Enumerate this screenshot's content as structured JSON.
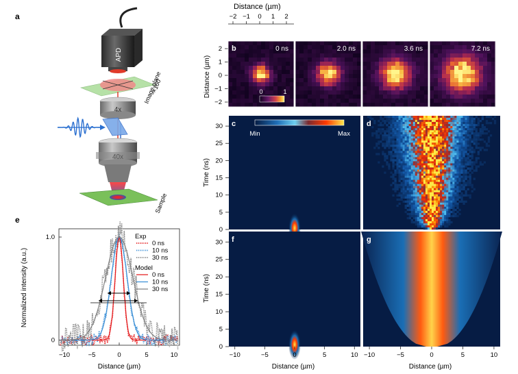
{
  "panels": {
    "a": "a",
    "b": "b",
    "c": "c",
    "d": "d",
    "e": "e",
    "f": "f",
    "g": "g"
  },
  "colors": {
    "hot_dark": "#140428",
    "hot_mid": "#c02a3a",
    "hot_bright": "#ffe56a",
    "jet_dark": "#061c44",
    "jet_mid": "#3cb6ea",
    "jet_hot": "#ff3a00",
    "exp0": "#e41a1c",
    "exp10": "#3a8fd6",
    "exp30": "#808080"
  },
  "schematic": {
    "detector": "APD",
    "image_plane": "Image plane",
    "magnification": "×160",
    "objective_small": "4x",
    "objective_large": "40x",
    "sample": "Sample"
  },
  "panel_b": {
    "top_axis_label": "Distance (µm)",
    "top_ticks": [
      "−2",
      "−1",
      "0",
      "1",
      "2"
    ],
    "y_label": "Distance (µm)",
    "y_ticks": [
      "2",
      "1",
      "0",
      "−1",
      "−2"
    ],
    "times": [
      "0 ns",
      "2.0 ns",
      "3.6 ns",
      "7.2 ns"
    ],
    "colorbar_min": "0",
    "colorbar_max": "1"
  },
  "heatmaps": {
    "colorbar_min": "Min",
    "colorbar_max": "Max",
    "time_label": "Time (ns)",
    "time_ticks": [
      "30",
      "25",
      "20",
      "15",
      "10",
      "5",
      "0"
    ],
    "x_label": "Distance (µm)",
    "x_ticks": [
      "−10",
      "−5",
      "0",
      "5",
      "10"
    ]
  },
  "chart_data": {
    "type": "line",
    "title": "",
    "xlabel": "Distance (µm)",
    "ylabel": "Normalized intensity (a.u.)",
    "xlim": [
      -11,
      11
    ],
    "ylim": [
      -0.05,
      1.08
    ],
    "x_ticks": [
      "−10",
      "−5",
      "0",
      "5",
      "10"
    ],
    "y_ticks": [
      "0",
      "1.0"
    ],
    "legend_exp_title": "Exp",
    "legend_model_title": "Model",
    "series": [
      {
        "name": "0 ns",
        "group": "Exp",
        "style": "dotted",
        "sigma_um": 0.75,
        "amplitude": 1.0
      },
      {
        "name": "10 ns",
        "group": "Exp",
        "style": "dotted",
        "sigma_um": 1.45,
        "amplitude": 1.0
      },
      {
        "name": "30 ns",
        "group": "Exp",
        "style": "dotted",
        "sigma_um": 2.5,
        "amplitude": 1.0
      },
      {
        "name": "0 ns",
        "group": "Model",
        "style": "solid",
        "sigma_um": 0.75,
        "amplitude": 1.0
      },
      {
        "name": "10 ns",
        "group": "Model",
        "style": "solid",
        "sigma_um": 1.45,
        "amplitude": 1.0
      },
      {
        "name": "30 ns",
        "group": "Model",
        "style": "solid",
        "sigma_um": 2.5,
        "amplitude": 1.0
      }
    ]
  }
}
